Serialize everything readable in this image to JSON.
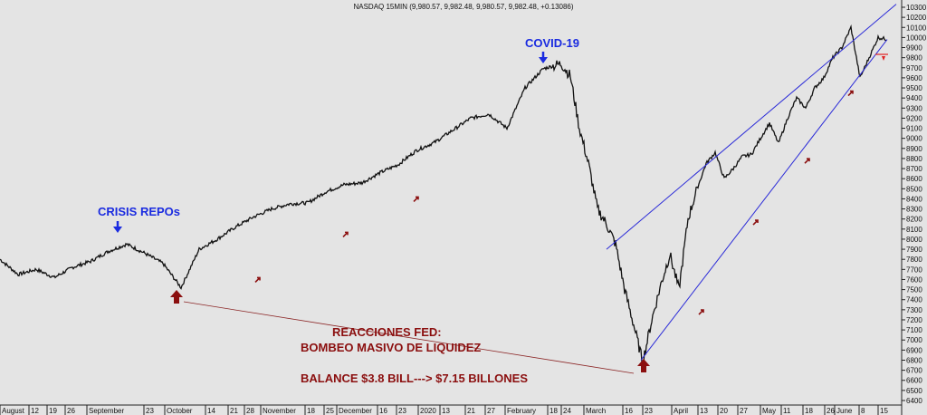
{
  "chart_data": {
    "type": "line",
    "title": "NASDAQ 15MIN (9,980.57, 9,982.48, 9,980.57, 9,982.48, +0.13086)",
    "ylim": [
      6400,
      10300
    ],
    "y_ticks": [
      6400,
      6500,
      6600,
      6700,
      6800,
      6900,
      7000,
      7100,
      7200,
      7300,
      7400,
      7500,
      7600,
      7700,
      7800,
      7900,
      8000,
      8100,
      8200,
      8300,
      8400,
      8500,
      8600,
      8700,
      8800,
      8900,
      9000,
      9100,
      9200,
      9300,
      9400,
      9500,
      9600,
      9700,
      9800,
      9900,
      10000,
      10100,
      10200,
      10300
    ],
    "x_tick_labels": [
      "August",
      "12",
      "19",
      "26",
      "September",
      "23",
      "October",
      "14",
      "21",
      "28",
      "November",
      "18",
      "25",
      "December",
      "16",
      "23",
      "2020",
      "13",
      "21",
      "27",
      "February",
      "18",
      "24",
      "March",
      "16",
      "23",
      "April",
      "13",
      "20",
      "27",
      "May",
      "11",
      "18",
      "26",
      "June",
      "8",
      "15"
    ],
    "x": [
      0,
      20,
      40,
      60,
      80,
      100,
      120,
      140,
      160,
      180,
      200,
      220,
      240,
      260,
      280,
      300,
      320,
      340,
      360,
      380,
      400,
      420,
      440,
      460,
      480,
      500,
      520,
      540,
      560,
      580,
      600,
      620,
      630,
      640,
      650,
      660,
      670,
      680,
      690,
      700,
      710,
      720,
      730,
      740,
      750,
      760,
      770,
      780,
      790,
      800,
      810,
      820,
      830,
      840,
      850,
      860,
      870,
      880,
      890,
      900,
      910,
      920,
      930,
      940,
      950,
      960,
      970,
      980
    ],
    "values": [
      7800,
      7650,
      7700,
      7620,
      7720,
      7780,
      7880,
      7950,
      7860,
      7760,
      7520,
      7900,
      8000,
      8120,
      8220,
      8300,
      8350,
      8360,
      8470,
      8540,
      8560,
      8660,
      8740,
      8880,
      8960,
      9080,
      9200,
      9240,
      9100,
      9500,
      9690,
      9740,
      9620,
      9100,
      8750,
      8300,
      8150,
      7950,
      7500,
      7150,
      6780,
      7200,
      7550,
      7850,
      7500,
      8200,
      8500,
      8750,
      8860,
      8600,
      8700,
      8820,
      8840,
      9000,
      9150,
      8950,
      9200,
      9400,
      9300,
      9500,
      9600,
      9800,
      9900,
      10100,
      9600,
      9800,
      10000,
      9982
    ],
    "trend_lines": [
      {
        "from": [
          670,
          7900
        ],
        "to": [
          990,
          10330
        ]
      },
      {
        "from": [
          708,
          6800
        ],
        "to": [
          980,
          9980
        ]
      }
    ],
    "small_arrows": [
      {
        "x": 285,
        "y": 7600
      },
      {
        "x": 382,
        "y": 8050
      },
      {
        "x": 460,
        "y": 8400
      },
      {
        "x": 775,
        "y": 7280
      },
      {
        "x": 835,
        "y": 8170
      },
      {
        "x": 892,
        "y": 8780
      },
      {
        "x": 940,
        "y": 9450
      }
    ],
    "colors": {
      "price": "#111111",
      "trend": "#2a2ad8",
      "annotation_blue": "#1a2be0",
      "annotation_red": "#8b0f0f",
      "background": "#e4e4e4",
      "last_price_marker": "#e02020"
    },
    "annotations": {
      "crisis_repos": "CRISIS REPOs",
      "covid": "COVID-19",
      "fed_line1": "REACCIONES  FED:",
      "fed_line2": "BOMBEO MASIVO DE LIQUIDEZ",
      "balance": "BALANCE $3.8 BILL---> $7.15 BILLONES"
    },
    "grid": false,
    "legend": "none"
  }
}
